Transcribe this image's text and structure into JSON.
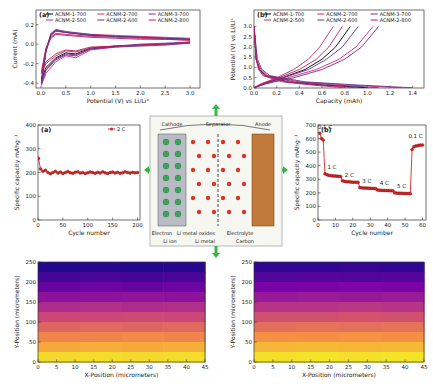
{
  "chart_data": [
    {
      "type": "line",
      "title": "(a)",
      "x_label": "Potential (V) vs Li/Li⁺",
      "y_label": "Current (mA)",
      "xlim": [
        -0.1,
        3.2
      ],
      "xticks": [
        {
          "value": 0,
          "label": "0.0"
        },
        0.5,
        {
          "value": 1,
          "label": "1.0"
        },
        1.5,
        {
          "value": 2,
          "label": "2.0"
        },
        2.5,
        {
          "value": 3,
          "label": "3.0"
        }
      ],
      "ylim": [
        -0.45,
        0.35
      ],
      "yticks": [
        -0.4,
        -0.2,
        {
          "value": 0,
          "label": "0.0"
        },
        0.2
      ],
      "grid": false,
      "legend": "upper center",
      "series": [
        {
          "name": "ACNM-1-700",
          "color": "#000000",
          "x": [
            3.0,
            2.5,
            2.0,
            1.5,
            1.0,
            0.7,
            0.5,
            0.3,
            0.1,
            0.01,
            0.1,
            0.2,
            0.3,
            0.5,
            1.0,
            1.5,
            2.0,
            2.5,
            3.0
          ],
          "values": [
            0.02,
            0.0,
            -0.01,
            -0.02,
            -0.04,
            -0.1,
            -0.09,
            -0.14,
            -0.24,
            -0.36,
            -0.06,
            0.1,
            0.14,
            0.12,
            0.09,
            0.08,
            0.07,
            0.06,
            0.05
          ]
        },
        {
          "name": "ACNM-2-700",
          "color": "#d6247a",
          "x": [
            3.0,
            2.5,
            2.0,
            1.5,
            1.0,
            0.7,
            0.5,
            0.3,
            0.1,
            0.01,
            0.1,
            0.2,
            0.3,
            0.5,
            1.0,
            1.5,
            2.0,
            2.5,
            3.0
          ],
          "values": [
            0.02,
            0.0,
            -0.01,
            -0.03,
            -0.06,
            -0.14,
            -0.12,
            -0.18,
            -0.3,
            -0.42,
            -0.08,
            0.08,
            0.13,
            0.12,
            0.1,
            0.09,
            0.08,
            0.07,
            0.06
          ]
        },
        {
          "name": "ACNM-3-700",
          "color": "#7a2a8c",
          "x": [
            3.0,
            2.5,
            2.0,
            1.5,
            1.0,
            0.7,
            0.5,
            0.3,
            0.1,
            0.01,
            0.1,
            0.2,
            0.3,
            0.5,
            1.0,
            1.5,
            2.0,
            2.5,
            3.0
          ],
          "values": [
            0.01,
            -0.01,
            -0.02,
            -0.03,
            -0.05,
            -0.11,
            -0.1,
            -0.15,
            -0.26,
            -0.39,
            -0.07,
            0.11,
            0.15,
            0.13,
            0.1,
            0.08,
            0.07,
            0.06,
            0.05
          ]
        },
        {
          "name": "ACNM-2-500",
          "color": "#b0306f",
          "x": [
            3.0,
            2.5,
            2.0,
            1.5,
            1.0,
            0.7,
            0.5,
            0.3,
            0.1,
            0.01,
            0.1,
            0.2,
            0.3,
            0.5,
            1.0,
            1.5,
            2.0,
            2.5,
            3.0
          ],
          "values": [
            0.01,
            0.0,
            -0.01,
            -0.02,
            -0.04,
            -0.08,
            -0.07,
            -0.12,
            -0.2,
            -0.3,
            -0.05,
            0.07,
            0.11,
            0.1,
            0.08,
            0.07,
            0.06,
            0.05,
            0.04
          ]
        },
        {
          "name": "ACNM-2-600",
          "color": "#5b3a8e",
          "x": [
            3.0,
            2.5,
            2.0,
            1.5,
            1.0,
            0.7,
            0.5,
            0.3,
            0.1,
            0.01,
            0.1,
            0.2,
            0.3,
            0.5,
            1.0,
            1.5,
            2.0,
            2.5,
            3.0
          ],
          "values": [
            0.02,
            0.01,
            0.0,
            -0.02,
            -0.05,
            -0.12,
            -0.11,
            -0.16,
            -0.27,
            -0.4,
            -0.07,
            0.09,
            0.14,
            0.12,
            0.09,
            0.08,
            0.07,
            0.06,
            0.05
          ]
        },
        {
          "name": "ACNM-2-800",
          "color": "#c2185b",
          "x": [
            3.0,
            2.5,
            2.0,
            1.5,
            1.0,
            0.7,
            0.5,
            0.3,
            0.1,
            0.01,
            0.1,
            0.2,
            0.3,
            0.5,
            1.0,
            1.5,
            2.0,
            2.5,
            3.0
          ],
          "values": [
            0.02,
            0.0,
            -0.01,
            -0.02,
            -0.03,
            -0.07,
            -0.06,
            -0.1,
            -0.18,
            -0.28,
            -0.04,
            0.06,
            0.1,
            0.09,
            0.07,
            0.06,
            0.05,
            0.05,
            0.04
          ]
        }
      ]
    },
    {
      "type": "line",
      "title": "(b)",
      "x_label": "Capacity (mAh)",
      "y_label": "Potential (V) vs Li/Li⁺",
      "xlim": [
        0,
        1.5
      ],
      "xticks": [
        {
          "value": 0,
          "label": "0.0"
        },
        0.2,
        0.4,
        0.6,
        0.8,
        {
          "value": 1,
          "label": "1.0"
        },
        1.2,
        1.4
      ],
      "ylim": [
        0,
        3.8
      ],
      "yticks": [
        {
          "value": 0,
          "label": "0.0"
        },
        0.5,
        {
          "value": 1,
          "label": "1.0"
        },
        1.5,
        {
          "value": 2,
          "label": "2.0"
        },
        2.5,
        {
          "value": 3,
          "label": "3.0"
        }
      ],
      "grid": false,
      "legend": "upper center",
      "series": [
        {
          "name": "ACNM-1-700",
          "color": "#000000",
          "x": [
            0,
            0.02,
            0.05,
            0.1,
            0.3,
            0.6,
            1.0,
            null,
            0,
            0.08,
            0.25,
            0.45,
            0.6,
            0.72,
            0.85
          ],
          "values": [
            3.0,
            1.4,
            0.9,
            0.6,
            0.3,
            0.15,
            0.01,
            null,
            0.01,
            0.2,
            0.5,
            0.9,
            1.4,
            2.0,
            3.0
          ]
        },
        {
          "name": "ACNM-2-700",
          "color": "#d6247a",
          "x": [
            0,
            0.02,
            0.06,
            0.12,
            0.4,
            0.8,
            1.3,
            null,
            0,
            0.1,
            0.3,
            0.55,
            0.75,
            0.9,
            1.05
          ],
          "values": [
            3.0,
            1.4,
            0.9,
            0.6,
            0.3,
            0.15,
            0.01,
            null,
            0.01,
            0.2,
            0.5,
            0.9,
            1.4,
            2.0,
            3.0
          ]
        },
        {
          "name": "ACNM-3-700",
          "color": "#7a2a8c",
          "x": [
            0,
            0.03,
            0.07,
            0.14,
            0.45,
            0.9,
            1.4,
            null,
            0,
            0.1,
            0.35,
            0.6,
            0.8,
            0.95,
            1.1
          ],
          "values": [
            3.0,
            1.4,
            0.9,
            0.6,
            0.3,
            0.15,
            0.01,
            null,
            0.01,
            0.2,
            0.5,
            0.9,
            1.4,
            2.0,
            3.0
          ]
        },
        {
          "name": "ACNM-2-500",
          "color": "#b0306f",
          "x": [
            0,
            0.02,
            0.04,
            0.08,
            0.25,
            0.5,
            0.8,
            null,
            0,
            0.06,
            0.2,
            0.35,
            0.48,
            0.58,
            0.7
          ],
          "values": [
            3.0,
            1.4,
            0.9,
            0.6,
            0.3,
            0.15,
            0.01,
            null,
            0.01,
            0.2,
            0.5,
            0.9,
            1.4,
            2.0,
            3.0
          ]
        },
        {
          "name": "ACNM-2-600",
          "color": "#5b3a8e",
          "x": [
            0,
            0.02,
            0.05,
            0.11,
            0.35,
            0.7,
            1.1,
            null,
            0,
            0.08,
            0.26,
            0.48,
            0.64,
            0.78,
            0.92
          ],
          "values": [
            3.0,
            1.4,
            0.9,
            0.6,
            0.3,
            0.15,
            0.01,
            null,
            0.01,
            0.2,
            0.5,
            0.9,
            1.4,
            2.0,
            3.0
          ]
        },
        {
          "name": "ACNM-2-800",
          "color": "#c2185b",
          "x": [
            0,
            0.02,
            0.045,
            0.09,
            0.28,
            0.55,
            0.9,
            null,
            0,
            0.07,
            0.22,
            0.4,
            0.55,
            0.66,
            0.78
          ],
          "values": [
            3.0,
            1.4,
            0.9,
            0.6,
            0.3,
            0.15,
            0.01,
            null,
            0.01,
            0.2,
            0.5,
            0.9,
            1.4,
            2.0,
            3.0
          ]
        }
      ]
    },
    {
      "type": "line",
      "title": "(a)",
      "x_label": "Cycle number",
      "y_label": "Specific capacity mAhg⁻¹",
      "xlim": [
        0,
        205
      ],
      "xticks": [
        0,
        50,
        100,
        150,
        200
      ],
      "ylim": [
        0,
        400
      ],
      "yticks": [
        0,
        100,
        200,
        300,
        400
      ],
      "grid": false,
      "legend": "upper right",
      "x": [
        1,
        5,
        10,
        15,
        20,
        25,
        30,
        35,
        40,
        45,
        50,
        55,
        60,
        65,
        70,
        75,
        80,
        85,
        90,
        95,
        100,
        105,
        110,
        115,
        120,
        125,
        130,
        135,
        140,
        145,
        150,
        155,
        160,
        165,
        170,
        175,
        180,
        185,
        190,
        195,
        200
      ],
      "series": [
        {
          "name": "2 C",
          "color": "#d62728",
          "marker": "circle",
          "values": [
            260,
            215,
            205,
            210,
            200,
            195,
            200,
            205,
            198,
            202,
            196,
            200,
            204,
            199,
            197,
            201,
            203,
            198,
            200,
            196,
            199,
            202,
            200,
            197,
            201,
            198,
            203,
            199,
            196,
            200,
            202,
            198,
            201,
            197,
            199,
            203,
            200,
            198,
            201,
            199,
            200
          ]
        }
      ]
    },
    {
      "type": "line",
      "title": "(b)",
      "x_label": "Cycle number",
      "y_label": "Specific capacity mAhg⁻¹",
      "xlim": [
        0,
        62
      ],
      "xticks": [
        0,
        10,
        20,
        30,
        40,
        50,
        60
      ],
      "ylim": [
        0,
        700
      ],
      "yticks": [
        0,
        100,
        200,
        300,
        400,
        500,
        600,
        700
      ],
      "grid": false,
      "x": [
        1,
        2,
        3,
        4,
        5,
        6,
        7,
        8,
        9,
        10,
        11,
        12,
        13,
        14,
        15,
        16,
        17,
        18,
        19,
        20,
        21,
        22,
        23,
        24,
        25,
        26,
        27,
        28,
        29,
        30,
        31,
        32,
        33,
        34,
        35,
        36,
        37,
        38,
        39,
        40,
        41,
        42,
        43,
        44,
        45,
        46,
        47,
        48,
        49,
        50,
        51,
        52,
        53,
        54,
        55,
        56,
        57,
        58,
        59,
        60
      ],
      "series": [
        {
          "color": "#d62728",
          "marker": "circle",
          "values": [
            640,
            600,
            590,
            340,
            335,
            330,
            328,
            326,
            325,
            324,
            323,
            322,
            321,
            290,
            285,
            283,
            282,
            281,
            280,
            279,
            279,
            278,
            278,
            240,
            238,
            236,
            235,
            235,
            234,
            234,
            233,
            233,
            232,
            222,
            220,
            219,
            218,
            218,
            217,
            217,
            216,
            216,
            215,
            200,
            199,
            198,
            197,
            197,
            196,
            196,
            195,
            195,
            194,
            520,
            540,
            545,
            548,
            550,
            552,
            553
          ]
        }
      ],
      "annotations": [
        {
          "text": "0.1 C",
          "x": 4,
          "y": 670
        },
        {
          "text": "1 C",
          "x": 8,
          "y": 375
        },
        {
          "text": "2 C",
          "x": 18,
          "y": 320
        },
        {
          "text": "3 C",
          "x": 28,
          "y": 272
        },
        {
          "text": "4 C",
          "x": 38,
          "y": 258
        },
        {
          "text": "5 C",
          "x": 48,
          "y": 238
        },
        {
          "text": "0.1 C",
          "x": 56,
          "y": 605
        }
      ]
    },
    {
      "type": "heatmap",
      "x_label": "X-Position (micrometers)",
      "y_label": "Y-Position (micrometers)",
      "xlim": [
        0,
        45
      ],
      "xticks": [
        0,
        5,
        10,
        15,
        20,
        25,
        30,
        35,
        40,
        45
      ],
      "ylim": [
        0,
        250
      ],
      "yticks": [
        0,
        50,
        100,
        150,
        200,
        250
      ],
      "zlim": [
        0,
        1
      ],
      "cells": [
        [
          0.05,
          0.06,
          0.05,
          0.06
        ],
        [
          0.12,
          0.13,
          0.12,
          0.13
        ],
        [
          0.2,
          0.21,
          0.2,
          0.21
        ],
        [
          0.3,
          0.3,
          0.31,
          0.3
        ],
        [
          0.4,
          0.41,
          0.4,
          0.41
        ],
        [
          0.5,
          0.5,
          0.51,
          0.5
        ],
        [
          0.6,
          0.61,
          0.6,
          0.61
        ],
        [
          0.7,
          0.7,
          0.71,
          0.7
        ],
        [
          0.8,
          0.81,
          0.8,
          0.81
        ],
        [
          0.92,
          0.93,
          0.92,
          0.93
        ]
      ]
    },
    {
      "type": "heatmap",
      "x_label": "X-Position (micrometers)",
      "y_label": "Y-Position (micrometers)",
      "xlim": [
        0,
        45
      ],
      "xticks": [
        0,
        5,
        10,
        15,
        20,
        25,
        30,
        35,
        40,
        45
      ],
      "ylim": [
        0,
        250
      ],
      "yticks": [
        0,
        50,
        100,
        150,
        200,
        250
      ],
      "zlim": [
        0,
        1
      ],
      "cells": [
        [
          0.08,
          0.08,
          0.09,
          0.08
        ],
        [
          0.15,
          0.16,
          0.15,
          0.16
        ],
        [
          0.24,
          0.24,
          0.25,
          0.24
        ],
        [
          0.33,
          0.34,
          0.33,
          0.34
        ],
        [
          0.43,
          0.43,
          0.44,
          0.43
        ],
        [
          0.53,
          0.53,
          0.54,
          0.53
        ],
        [
          0.63,
          0.64,
          0.63,
          0.64
        ],
        [
          0.73,
          0.73,
          0.74,
          0.73
        ],
        [
          0.83,
          0.84,
          0.83,
          0.84
        ],
        [
          0.94,
          0.95,
          0.94,
          0.95
        ]
      ]
    }
  ],
  "diagram": {
    "labels": [
      "Cathode",
      "Separator",
      "Anode",
      "Electron",
      "Li metal oxides",
      "Electrolyte",
      "Li ion",
      "Li metal",
      "Carbon"
    ]
  }
}
